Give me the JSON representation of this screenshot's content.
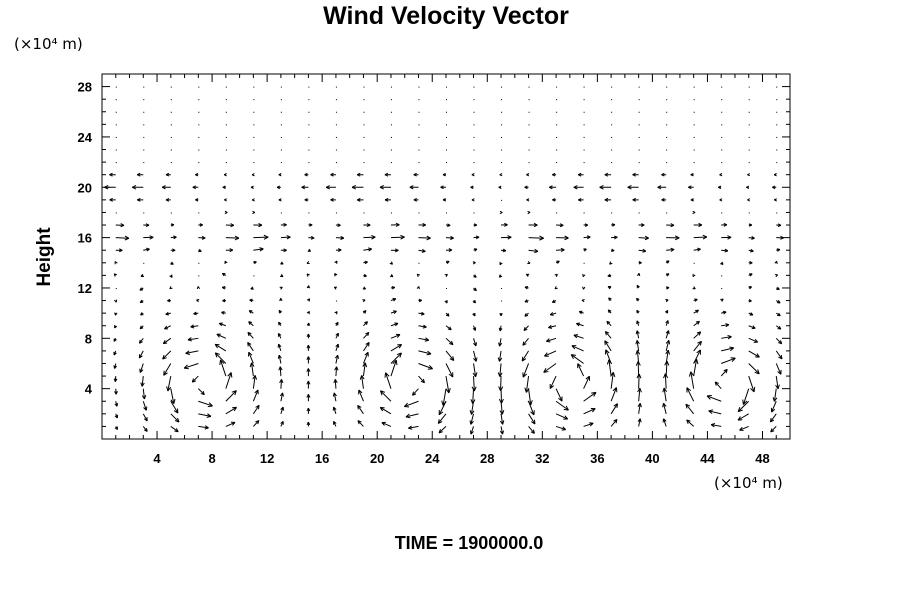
{
  "chart_data": {
    "type": "vector-field",
    "title": "Wind Velocity Vector",
    "xlabel": "",
    "ylabel": "Height",
    "x_unit_label": "(×10⁴ m)",
    "y_unit_label": "(×10⁴ m)",
    "xlim": [
      0,
      50
    ],
    "ylim": [
      0,
      29
    ],
    "x_ticks": [
      4,
      8,
      12,
      16,
      20,
      24,
      28,
      32,
      36,
      40,
      44,
      48
    ],
    "y_ticks": [
      4,
      8,
      12,
      16,
      20,
      24,
      28
    ],
    "grid": false,
    "series": [
      {
        "name": "",
        "description": "wind vectors on a regular grid (x every 2×10⁴ m, y every 1×10⁴ m)",
        "vortices": [
          {
            "x": 7.5,
            "y": 4.5,
            "rotation": "counterclockwise"
          },
          {
            "x": 22.5,
            "y": 4.5,
            "rotation": "clockwise"
          },
          {
            "x": 34.0,
            "y": 4.5,
            "rotation": "counterclockwise"
          },
          {
            "x": 45.5,
            "y": 4.5,
            "rotation": "clockwise"
          }
        ],
        "upper_jet": {
          "height": 16,
          "direction": "+x"
        },
        "return_flow": {
          "height": 20,
          "direction": "-x"
        }
      }
    ]
  },
  "footer": {
    "time_label": "TIME = 1900000.0"
  }
}
